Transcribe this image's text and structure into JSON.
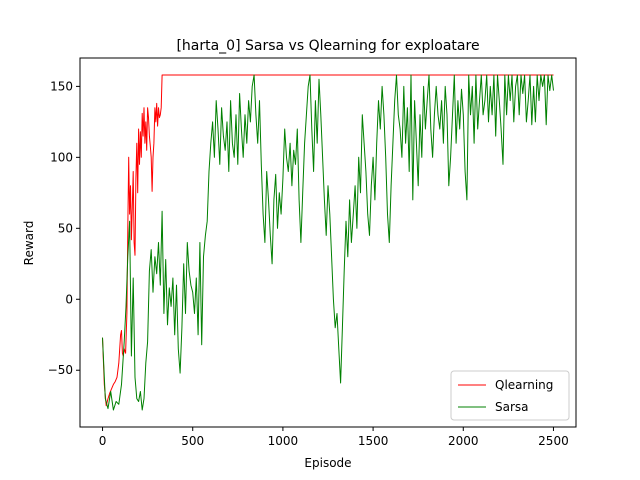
{
  "chart_data": {
    "type": "line",
    "title": "[harta_0] Sarsa vs Qlearning for exploatare",
    "xlabel": "Episode",
    "ylabel": "Reward",
    "xlim": [
      -125,
      2625
    ],
    "ylim": [
      -90,
      170
    ],
    "xticks": [
      0,
      500,
      1000,
      1500,
      2000,
      2500
    ],
    "yticks": [
      -50,
      0,
      50,
      100,
      150
    ],
    "xtick_labels": [
      "0",
      "500",
      "1000",
      "1500",
      "2000",
      "2500"
    ],
    "ytick_labels": [
      "−50",
      "0",
      "50",
      "100",
      "150"
    ],
    "grid": false,
    "legend_position": "lower-right",
    "series": [
      {
        "name": "Qlearning",
        "color": "#ff0000",
        "points": [
          [
            0,
            -27
          ],
          [
            10,
            -60
          ],
          [
            20,
            -75
          ],
          [
            30,
            -70
          ],
          [
            40,
            -66
          ],
          [
            50,
            -63
          ],
          [
            60,
            -60
          ],
          [
            70,
            -58
          ],
          [
            80,
            -55
          ],
          [
            90,
            -45
          ],
          [
            100,
            -25
          ],
          [
            105,
            -22
          ],
          [
            110,
            -38
          ],
          [
            115,
            -40
          ],
          [
            120,
            -35
          ],
          [
            128,
            -38
          ],
          [
            135,
            -10
          ],
          [
            140,
            50
          ],
          [
            145,
            100
          ],
          [
            150,
            60
          ],
          [
            155,
            80
          ],
          [
            160,
            42
          ],
          [
            165,
            65
          ],
          [
            170,
            90
          ],
          [
            175,
            40
          ],
          [
            180,
            31
          ],
          [
            185,
            85
          ],
          [
            190,
            110
          ],
          [
            195,
            75
          ],
          [
            200,
            120
          ],
          [
            205,
            95
          ],
          [
            210,
            118
          ],
          [
            215,
            100
          ],
          [
            220,
            131
          ],
          [
            225,
            115
          ],
          [
            230,
            135
          ],
          [
            235,
            110
          ],
          [
            240,
            125
          ],
          [
            245,
            105
          ],
          [
            250,
            135
          ],
          [
            255,
            128
          ],
          [
            260,
            115
          ],
          [
            265,
            108
          ],
          [
            270,
            100
          ],
          [
            275,
            76
          ],
          [
            280,
            100
          ],
          [
            285,
            110
          ],
          [
            290,
            135
          ],
          [
            295,
            125
          ],
          [
            300,
            138
          ],
          [
            305,
            122
          ],
          [
            310,
            135
          ],
          [
            315,
            128
          ],
          [
            320,
            130
          ],
          [
            325,
            135
          ],
          [
            330,
            158
          ],
          [
            2500,
            158
          ]
        ]
      },
      {
        "name": "Sarsa",
        "color": "#008000",
        "points": [
          [
            0,
            -27
          ],
          [
            15,
            -70
          ],
          [
            30,
            -77
          ],
          [
            45,
            -65
          ],
          [
            60,
            -78
          ],
          [
            75,
            -72
          ],
          [
            90,
            -74
          ],
          [
            105,
            -60
          ],
          [
            120,
            -30
          ],
          [
            130,
            -5
          ],
          [
            140,
            30
          ],
          [
            150,
            55
          ],
          [
            160,
            -40
          ],
          [
            170,
            15
          ],
          [
            180,
            -55
          ],
          [
            190,
            -70
          ],
          [
            200,
            -72
          ],
          [
            210,
            -65
          ],
          [
            220,
            -78
          ],
          [
            230,
            -70
          ],
          [
            240,
            -45
          ],
          [
            250,
            -30
          ],
          [
            260,
            20
          ],
          [
            270,
            35
          ],
          [
            280,
            5
          ],
          [
            290,
            30
          ],
          [
            300,
            18
          ],
          [
            310,
            40
          ],
          [
            320,
            10
          ],
          [
            330,
            62
          ],
          [
            340,
            -10
          ],
          [
            350,
            28
          ],
          [
            360,
            -18
          ],
          [
            370,
            8
          ],
          [
            380,
            -5
          ],
          [
            390,
            15
          ],
          [
            400,
            -25
          ],
          [
            410,
            10
          ],
          [
            420,
            -35
          ],
          [
            430,
            -52
          ],
          [
            440,
            -20
          ],
          [
            450,
            25
          ],
          [
            460,
            -10
          ],
          [
            470,
            40
          ],
          [
            480,
            20
          ],
          [
            490,
            10
          ],
          [
            500,
            5
          ],
          [
            510,
            -10
          ],
          [
            520,
            15
          ],
          [
            530,
            -25
          ],
          [
            540,
            40
          ],
          [
            550,
            -32
          ],
          [
            560,
            30
          ],
          [
            570,
            45
          ],
          [
            580,
            55
          ],
          [
            590,
            90
          ],
          [
            600,
            110
          ],
          [
            610,
            125
          ],
          [
            620,
            100
          ],
          [
            630,
            140
          ],
          [
            640,
            120
          ],
          [
            650,
            95
          ],
          [
            660,
            135
          ],
          [
            670,
            115
          ],
          [
            680,
            105
          ],
          [
            690,
            125
          ],
          [
            700,
            90
          ],
          [
            710,
            140
          ],
          [
            720,
            110
          ],
          [
            730,
            100
          ],
          [
            740,
            130
          ],
          [
            750,
            95
          ],
          [
            760,
            145
          ],
          [
            770,
            120
          ],
          [
            780,
            100
          ],
          [
            790,
            130
          ],
          [
            800,
            110
          ],
          [
            810,
            140
          ],
          [
            820,
            125
          ],
          [
            830,
            150
          ],
          [
            840,
            158
          ],
          [
            850,
            130
          ],
          [
            860,
            110
          ],
          [
            870,
            140
          ],
          [
            880,
            95
          ],
          [
            890,
            60
          ],
          [
            900,
            40
          ],
          [
            910,
            90
          ],
          [
            920,
            70
          ],
          [
            930,
            45
          ],
          [
            940,
            25
          ],
          [
            950,
            70
          ],
          [
            960,
            88
          ],
          [
            970,
            50
          ],
          [
            980,
            75
          ],
          [
            990,
            60
          ],
          [
            1000,
            85
          ],
          [
            1010,
            120
          ],
          [
            1020,
            100
          ],
          [
            1030,
            90
          ],
          [
            1040,
            110
          ],
          [
            1050,
            80
          ],
          [
            1060,
            105
          ],
          [
            1070,
            95
          ],
          [
            1080,
            120
          ],
          [
            1090,
            70
          ],
          [
            1100,
            40
          ],
          [
            1110,
            75
          ],
          [
            1120,
            110
          ],
          [
            1130,
            130
          ],
          [
            1140,
            150
          ],
          [
            1150,
            158
          ],
          [
            1160,
            120
          ],
          [
            1170,
            90
          ],
          [
            1180,
            140
          ],
          [
            1190,
            110
          ],
          [
            1200,
            155
          ],
          [
            1210,
            130
          ],
          [
            1220,
            100
          ],
          [
            1230,
            70
          ],
          [
            1240,
            45
          ],
          [
            1250,
            80
          ],
          [
            1260,
            60
          ],
          [
            1270,
            30
          ],
          [
            1280,
            0
          ],
          [
            1290,
            -20
          ],
          [
            1300,
            -10
          ],
          [
            1310,
            -35
          ],
          [
            1320,
            -59
          ],
          [
            1330,
            -20
          ],
          [
            1340,
            20
          ],
          [
            1350,
            55
          ],
          [
            1360,
            30
          ],
          [
            1370,
            70
          ],
          [
            1380,
            40
          ],
          [
            1390,
            60
          ],
          [
            1400,
            80
          ],
          [
            1410,
            50
          ],
          [
            1420,
            100
          ],
          [
            1430,
            75
          ],
          [
            1440,
            130
          ],
          [
            1450,
            110
          ],
          [
            1460,
            90
          ],
          [
            1470,
            60
          ],
          [
            1480,
            45
          ],
          [
            1490,
            80
          ],
          [
            1500,
            100
          ],
          [
            1510,
            70
          ],
          [
            1520,
            110
          ],
          [
            1530,
            140
          ],
          [
            1540,
            120
          ],
          [
            1550,
            150
          ],
          [
            1560,
            130
          ],
          [
            1570,
            100
          ],
          [
            1580,
            60
          ],
          [
            1590,
            40
          ],
          [
            1600,
            80
          ],
          [
            1610,
            110
          ],
          [
            1620,
            140
          ],
          [
            1630,
            158
          ],
          [
            1640,
            130
          ],
          [
            1650,
            120
          ],
          [
            1660,
            100
          ],
          [
            1670,
            150
          ],
          [
            1680,
            110
          ],
          [
            1690,
            135
          ],
          [
            1700,
            90
          ],
          [
            1710,
            158
          ],
          [
            1720,
            70
          ],
          [
            1730,
            140
          ],
          [
            1740,
            110
          ],
          [
            1750,
            80
          ],
          [
            1760,
            130
          ],
          [
            1770,
            100
          ],
          [
            1780,
            150
          ],
          [
            1790,
            120
          ],
          [
            1800,
            140
          ],
          [
            1810,
            158
          ],
          [
            1820,
            120
          ],
          [
            1830,
            100
          ],
          [
            1840,
            130
          ],
          [
            1850,
            150
          ],
          [
            1860,
            130
          ],
          [
            1870,
            120
          ],
          [
            1880,
            140
          ],
          [
            1890,
            110
          ],
          [
            1900,
            150
          ],
          [
            1910,
            130
          ],
          [
            1920,
            80
          ],
          [
            1930,
            100
          ],
          [
            1940,
            130
          ],
          [
            1950,
            158
          ],
          [
            1960,
            110
          ],
          [
            1970,
            140
          ],
          [
            1980,
            120
          ],
          [
            1990,
            148
          ],
          [
            2000,
            130
          ],
          [
            2010,
            90
          ],
          [
            2020,
            70
          ],
          [
            2030,
            158
          ],
          [
            2040,
            130
          ],
          [
            2050,
            150
          ],
          [
            2060,
            110
          ],
          [
            2070,
            158
          ],
          [
            2080,
            120
          ],
          [
            2090,
            140
          ],
          [
            2100,
            158
          ],
          [
            2110,
            130
          ],
          [
            2120,
            140
          ],
          [
            2130,
            158
          ],
          [
            2140,
            125
          ],
          [
            2150,
            150
          ],
          [
            2160,
            130
          ],
          [
            2170,
            158
          ],
          [
            2180,
            115
          ],
          [
            2190,
            158
          ],
          [
            2200,
            140
          ],
          [
            2210,
            120
          ],
          [
            2220,
            95
          ],
          [
            2230,
            158
          ],
          [
            2240,
            130
          ],
          [
            2250,
            158
          ],
          [
            2260,
            140
          ],
          [
            2270,
            158
          ],
          [
            2280,
            125
          ],
          [
            2290,
            150
          ],
          [
            2300,
            158
          ],
          [
            2310,
            130
          ],
          [
            2320,
            158
          ],
          [
            2330,
            145
          ],
          [
            2340,
            158
          ],
          [
            2350,
            125
          ],
          [
            2360,
            140
          ],
          [
            2370,
            158
          ],
          [
            2380,
            123
          ],
          [
            2390,
            150
          ],
          [
            2400,
            125
          ],
          [
            2410,
            158
          ],
          [
            2420,
            140
          ],
          [
            2430,
            158
          ],
          [
            2440,
            150
          ],
          [
            2450,
            158
          ],
          [
            2460,
            123
          ],
          [
            2470,
            158
          ],
          [
            2480,
            147
          ],
          [
            2490,
            158
          ],
          [
            2500,
            147
          ]
        ]
      }
    ]
  }
}
